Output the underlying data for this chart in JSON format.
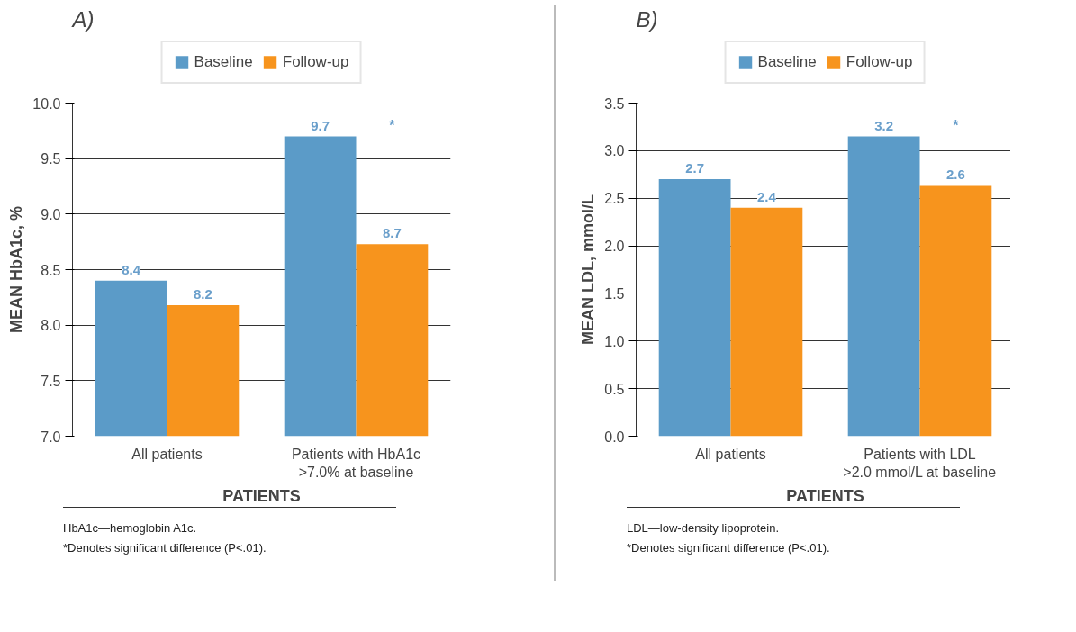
{
  "chart_data": [
    {
      "type": "bar",
      "title": "A)",
      "xlabel": "PATIENTS",
      "ylabel": "MEAN HbA1c, %",
      "categories": [
        "All patients",
        "Patients with HbA1c\n>7.0% at baseline"
      ],
      "series": [
        {
          "name": "Baseline",
          "color": "#5b9bc8",
          "values": [
            8.4,
            9.7
          ],
          "value_labels": [
            "8.4",
            "9.7"
          ]
        },
        {
          "name": "Follow-up",
          "color": "#f7941d",
          "values": [
            8.18,
            8.73
          ],
          "value_labels": [
            "8.2",
            "8.7"
          ]
        }
      ],
      "ylim": [
        7.0,
        10.0
      ],
      "yticks": [
        {
          "value": 7,
          "label": "7.0"
        },
        {
          "value": 7.5,
          "label": "7.5"
        },
        {
          "value": 8,
          "label": "8.0"
        },
        {
          "value": 8.5,
          "label": "8.5"
        },
        {
          "value": 9,
          "label": "9.0"
        },
        {
          "value": 9.5,
          "label": "9.5"
        },
        {
          "value": 10,
          "label": "10.0"
        }
      ],
      "grid": "y",
      "legend": "top",
      "annotations": [
        {
          "text": "*",
          "x": "Patients with HbA1c\n>7.0% at baseline",
          "y": 9.7
        },
        "HbA1c—hemoglobin A1c.",
        "*Denotes significant difference (P<.01)."
      ]
    },
    {
      "type": "bar",
      "title": "B)",
      "xlabel": "PATIENTS",
      "ylabel": "MEAN LDL, mmol/L",
      "categories": [
        "All patients",
        "Patients with LDL\n>2.0 mmol/L at baseline"
      ],
      "series": [
        {
          "name": "Baseline",
          "color": "#5b9bc8",
          "values": [
            2.7,
            3.15
          ],
          "value_labels": [
            "2.7",
            "3.2"
          ]
        },
        {
          "name": "Follow-up",
          "color": "#f7941d",
          "values": [
            2.4,
            2.63
          ],
          "value_labels": [
            "2.4",
            "2.6"
          ]
        }
      ],
      "ylim": [
        0.0,
        3.5
      ],
      "yticks": [
        {
          "value": 0,
          "label": "0.0"
        },
        {
          "value": 0.5,
          "label": "0.5"
        },
        {
          "value": 1,
          "label": "1.0"
        },
        {
          "value": 1.5,
          "label": "1.5"
        },
        {
          "value": 2,
          "label": "2.0"
        },
        {
          "value": 2.5,
          "label": "2.5"
        },
        {
          "value": 3,
          "label": "3.0"
        },
        {
          "value": 3.5,
          "label": "3.5"
        }
      ],
      "grid": "y",
      "legend": "top",
      "annotations": [
        {
          "text": "*",
          "x": "Patients with LDL\n>2.0 mmol/L at baseline",
          "y": 3.15
        },
        "LDL—low-density lipoprotein.",
        "*Denotes significant difference (P<.01)."
      ]
    }
  ]
}
